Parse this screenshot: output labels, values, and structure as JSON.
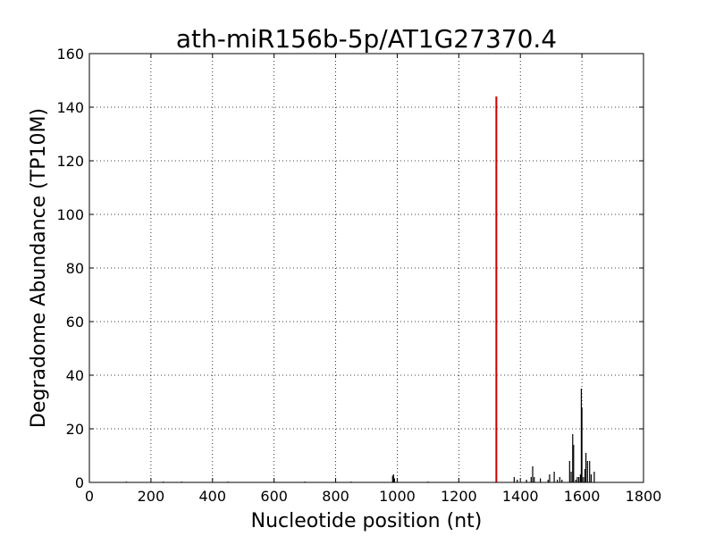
{
  "chart_data": {
    "type": "bar",
    "title": "ath-miR156b-5p/AT1G27370.4",
    "xlabel": "Nucleotide position (nt)",
    "ylabel": "Degradome Abundance (TP10M)",
    "xlim": [
      0,
      1800
    ],
    "ylim": [
      0,
      160
    ],
    "xticks": [
      0,
      200,
      400,
      600,
      800,
      1000,
      1200,
      1400,
      1600,
      1800
    ],
    "yticks": [
      0,
      20,
      40,
      60,
      80,
      100,
      120,
      140,
      160
    ],
    "grid": true,
    "grid_style": "dotted",
    "series": [
      {
        "color": "#000000",
        "x": [
          120,
          240,
          300,
          450,
          600,
          700,
          850,
          985,
          988,
          991,
          1100,
          1200,
          1380,
          1390,
          1420,
          1435,
          1440,
          1445,
          1465,
          1490,
          1495,
          1510,
          1520,
          1528,
          1535,
          1560,
          1565,
          1570,
          1573,
          1580,
          1585,
          1590,
          1595,
          1598,
          1600,
          1605,
          1610,
          1613,
          1618,
          1625,
          1630,
          1640
        ],
        "values": [
          0.3,
          0.3,
          0.3,
          0.3,
          0.3,
          0.3,
          0.3,
          2.5,
          3,
          1.5,
          0.3,
          0.3,
          2,
          1,
          1,
          2,
          6,
          2,
          1.5,
          1,
          3,
          4,
          1,
          2,
          1,
          8,
          4,
          18,
          14,
          1,
          2,
          2,
          3,
          35,
          28,
          2,
          5,
          11,
          8,
          8,
          3,
          4
        ]
      },
      {
        "color": "#cc0000",
        "x": [
          1322
        ],
        "values": [
          144
        ]
      }
    ]
  }
}
